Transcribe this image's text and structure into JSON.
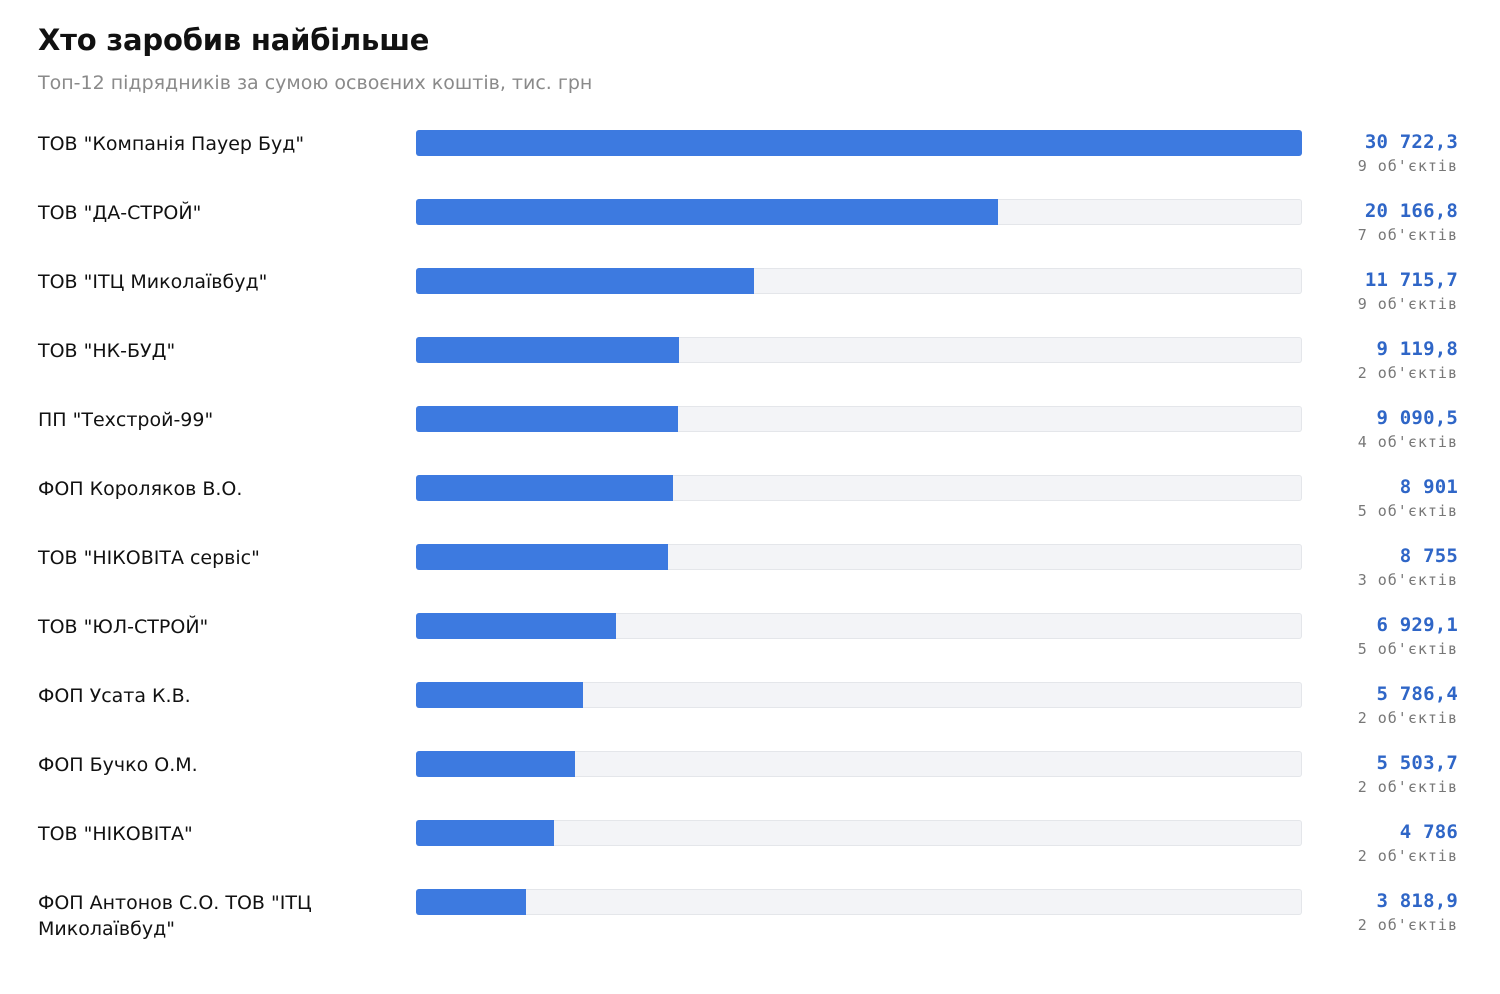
{
  "header": {
    "title": "Хто заробив найбільше",
    "subtitle": "Топ-12 підрядників за сумою освоєних коштів, тис. грн"
  },
  "chart_data": {
    "type": "bar",
    "title": "Хто заробив найбільше",
    "subtitle": "Топ-12 підрядників за сумою освоєних коштів, тис. грн",
    "categories": [
      "ТОВ \"Компанія Пауер Буд\"",
      "ТОВ \"ДА-СТРОЙ\"",
      "ТОВ \"ІТЦ Миколаївбуд\"",
      "ТОВ \"НК-БУД\"",
      "ПП \"Техстрой-99\"",
      "ФОП Короляков В.О.",
      "ТОВ \"НІКОВІТА сервіс\"",
      "ТОВ \"ЮЛ-СТРОЙ\"",
      "ФОП Усата К.В.",
      "ФОП Бучко О.М.",
      "ТОВ \"НІКОВІТА\"",
      "ФОП Антонов С.О. ТОВ \"ІТЦ Миколаївбуд\""
    ],
    "values": [
      30722.3,
      20166.8,
      11715.7,
      9119.8,
      9090.5,
      8901,
      8755,
      6929.1,
      5786.4,
      5503.7,
      4786,
      3818.9
    ],
    "value_labels": [
      "30 722,3",
      "20 166,8",
      "11 715,7",
      "9 119,8",
      "9 090,5",
      "8 901",
      "8 755",
      "6 929,1",
      "5 786,4",
      "5 503,7",
      "4 786",
      "3 818,9"
    ],
    "counts": [
      "9 об'єктів",
      "7 об'єктів",
      "9 об'єктів",
      "2 об'єктів",
      "4 об'єктів",
      "5 об'єктів",
      "3 об'єктів",
      "5 об'єктів",
      "2 об'єктів",
      "2 об'єктів",
      "2 об'єктів",
      "2 об'єктів"
    ],
    "xlim": [
      0,
      30722.3
    ],
    "orientation": "horizontal",
    "grid": false,
    "colors": {
      "bar": "#3d7ae0",
      "track": "#f3f4f7",
      "value_text": "#2f66c7",
      "count_text": "#777777"
    }
  }
}
